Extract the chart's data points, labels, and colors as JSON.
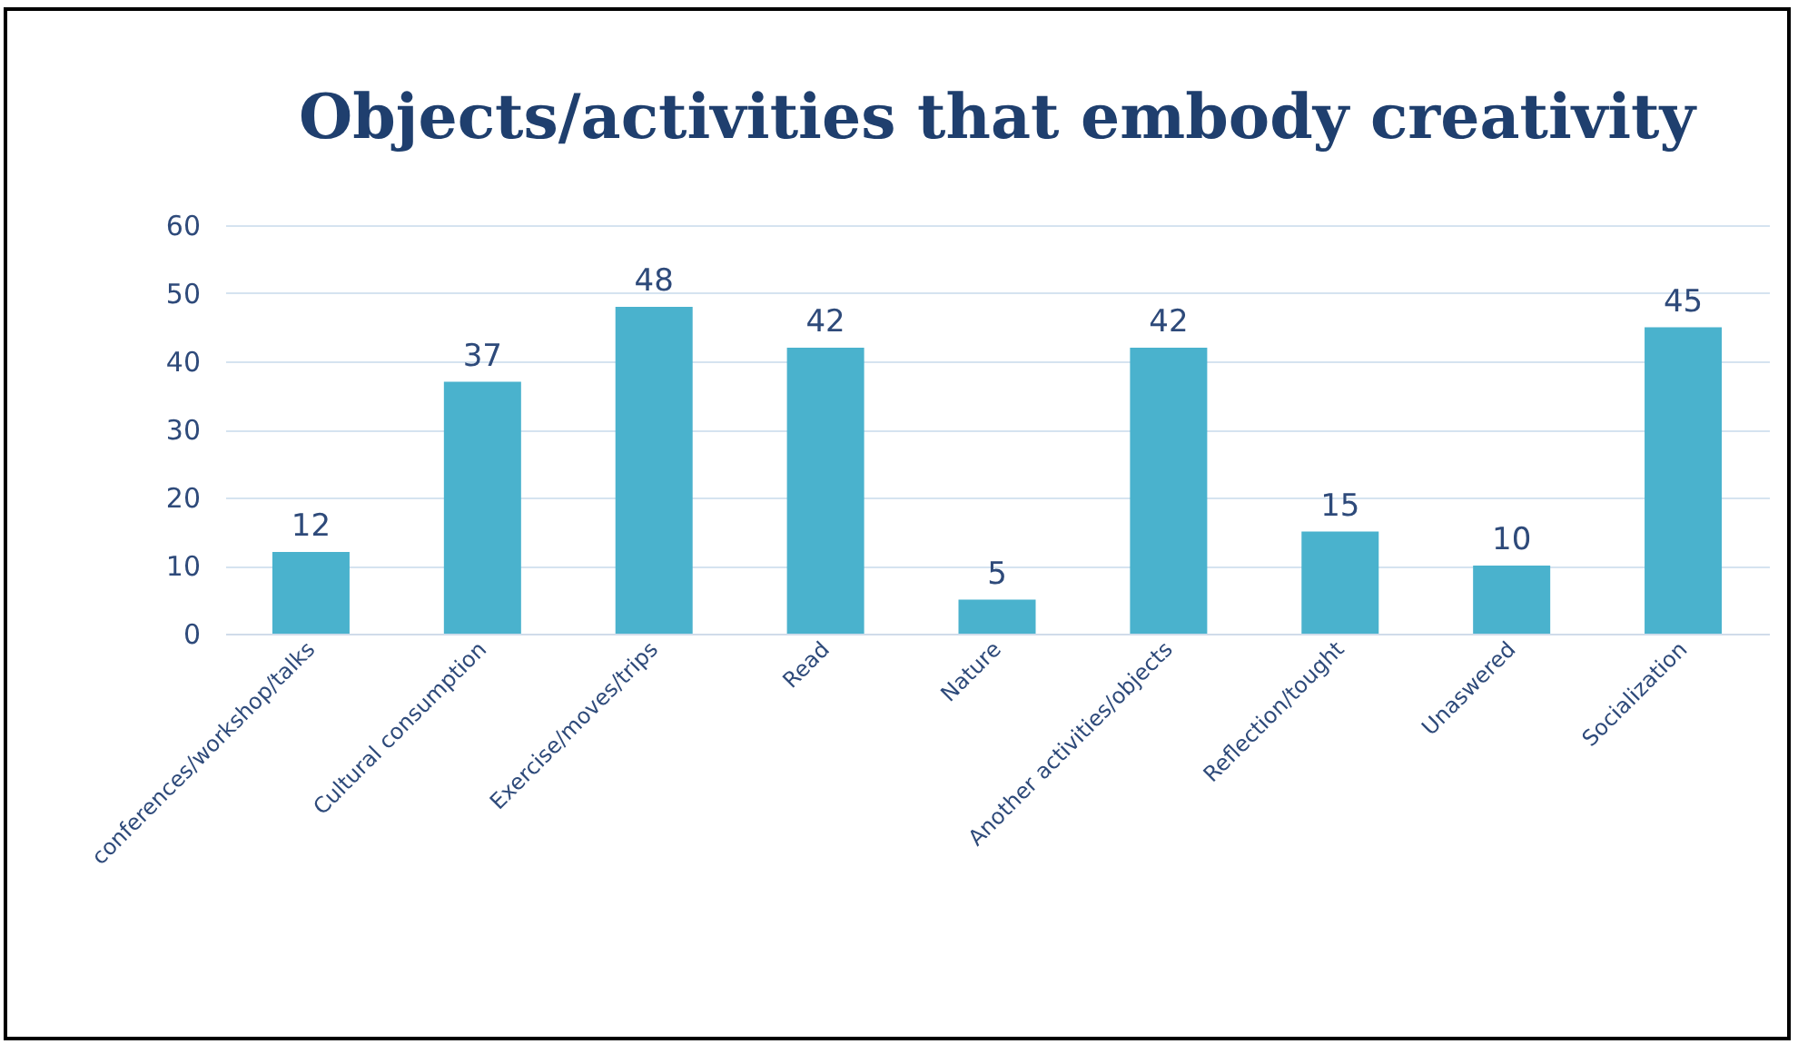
{
  "chart_data": {
    "type": "bar",
    "title": "Objects/activities that embody creativity",
    "categories": [
      "conferences/workshop/talks",
      "Cultural consumption",
      "Exercise/moves/trips",
      "Read",
      "Nature",
      "Another activities/objects",
      "Reflection/tought",
      "Unaswered",
      "Socialization"
    ],
    "values": [
      12,
      37,
      48,
      42,
      5,
      42,
      15,
      10,
      45
    ],
    "color": "#4ab2cd",
    "ylim": [
      0,
      60
    ],
    "yticks": [
      0,
      10,
      20,
      30,
      40,
      50,
      60
    ],
    "grid": "y",
    "data_labels": true
  }
}
